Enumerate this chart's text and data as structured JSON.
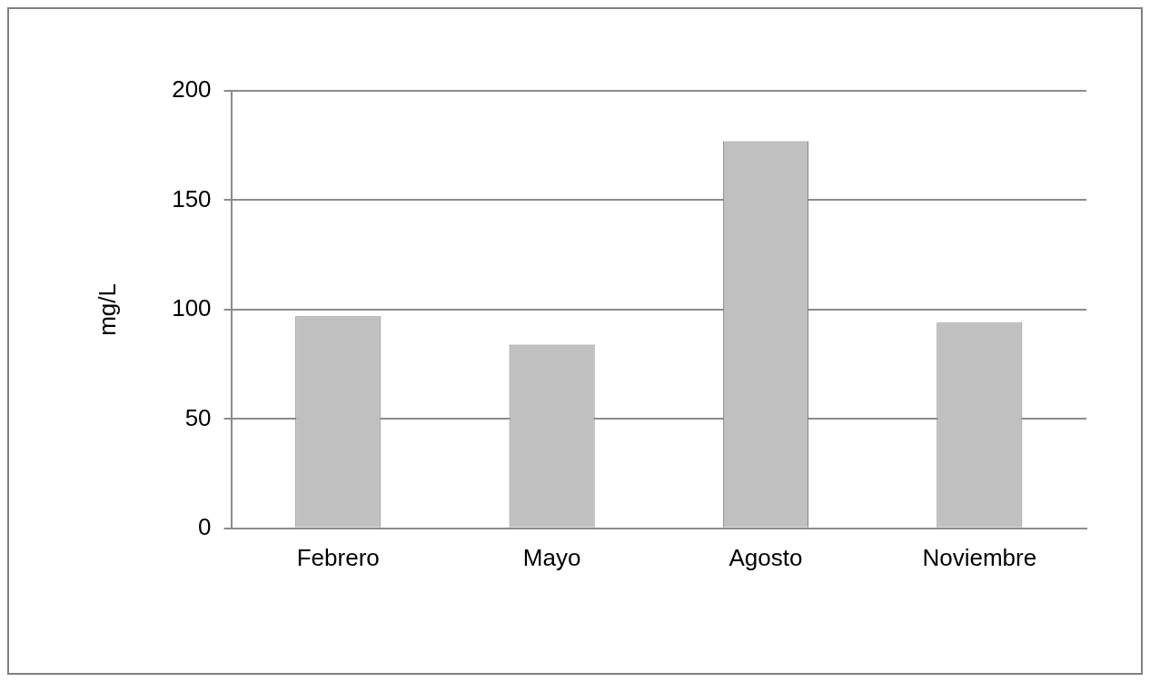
{
  "chart_data": {
    "type": "bar",
    "ylabel": "mg/L",
    "categories": [
      "Febrero",
      "Mayo",
      "Agosto",
      "Noviembre"
    ],
    "values": [
      97,
      84,
      177,
      94
    ],
    "color": "#c0c0c0",
    "ylim": [
      0,
      200
    ],
    "yticks": [
      0,
      50,
      100,
      150,
      200
    ],
    "grid": "y",
    "legend": false
  }
}
